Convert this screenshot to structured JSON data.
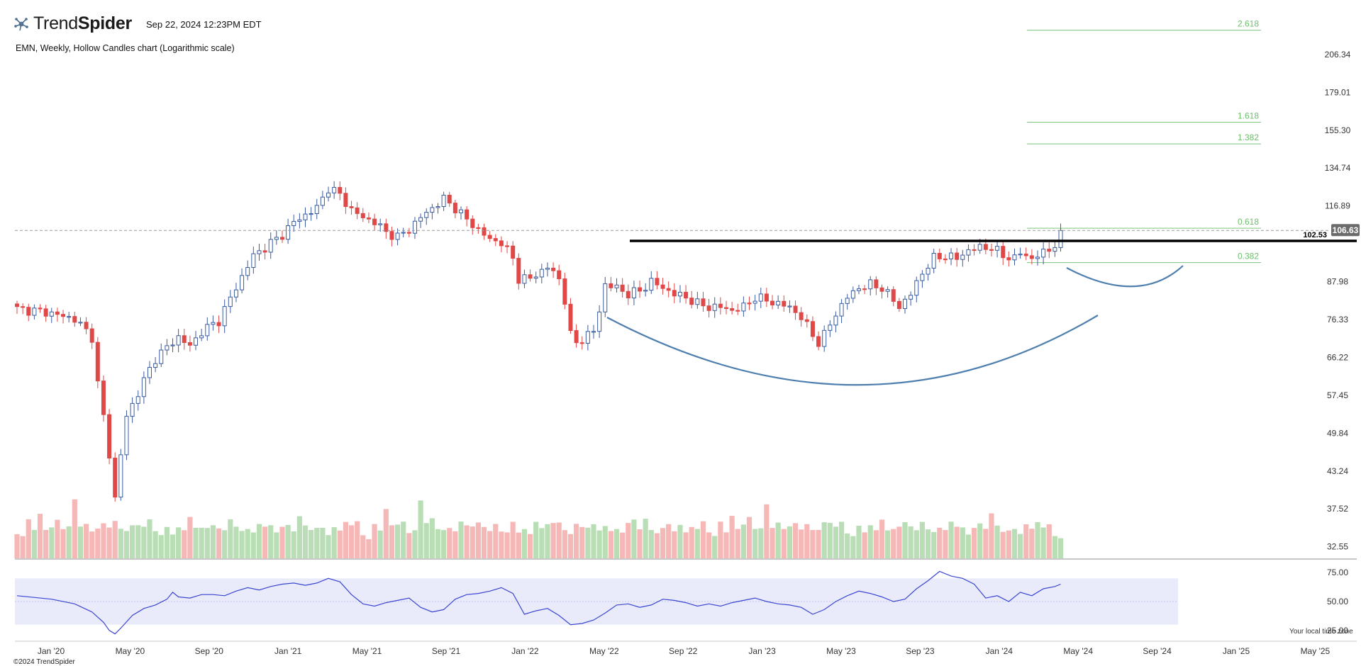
{
  "header": {
    "brand_light": "Trend",
    "brand_bold": "Spider",
    "timestamp": "Sep 22, 2024 12:23PM EDT",
    "chart_title": "EMN, Weekly, Hollow Candles chart (Logarithmic scale)",
    "copyright": "©2024 TrendSpider",
    "timezone_note": "Your local time zone"
  },
  "colors": {
    "up": "#3a5ba0",
    "down": "#e04848",
    "vol_up": "#b9deb6",
    "vol_down": "#f6b7b7",
    "fib": "#7cc57a",
    "arc": "#4f7fae",
    "rsi": "#3b46d0",
    "rsi_band": "#e9ebfb"
  },
  "chart_data": {
    "type": "candlestick",
    "ticker": "EMN",
    "interval": "Weekly",
    "scale": "log",
    "ylim": [
      31,
      240
    ],
    "y_ticks": [
      "206.34",
      "179.01",
      "155.30",
      "134.74",
      "116.89",
      "87.98",
      "76.33",
      "66.22",
      "57.45",
      "49.84",
      "43.24",
      "37.52",
      "32.55"
    ],
    "x_ticks": [
      "Jan '20",
      "May '20",
      "Sep '20",
      "Jan '21",
      "May '21",
      "Sep '21",
      "Jan '22",
      "May '22",
      "Sep '22",
      "Jan '23",
      "May '23",
      "Sep '23",
      "Jan '24",
      "May '24",
      "Sep '24",
      "Jan '25",
      "May '25"
    ],
    "price_path": [
      [
        0,
        79.5
      ],
      [
        5,
        78.5
      ],
      [
        10,
        76.5
      ],
      [
        13,
        71.5
      ],
      [
        14,
        60
      ],
      [
        16,
        46
      ],
      [
        17,
        39
      ],
      [
        18,
        46
      ],
      [
        19,
        53
      ],
      [
        21,
        58
      ],
      [
        24,
        66
      ],
      [
        28,
        71.5
      ],
      [
        30,
        69
      ],
      [
        32,
        73
      ],
      [
        35,
        76
      ],
      [
        38,
        86
      ],
      [
        41,
        97
      ],
      [
        43,
        100
      ],
      [
        46,
        105
      ],
      [
        48,
        110
      ],
      [
        50,
        113
      ],
      [
        52,
        116
      ],
      [
        54,
        125
      ],
      [
        56,
        122
      ],
      [
        58,
        115
      ],
      [
        60,
        112
      ],
      [
        62,
        110
      ],
      [
        64,
        106
      ],
      [
        66,
        104
      ],
      [
        68,
        107
      ],
      [
        70,
        112
      ],
      [
        72,
        116
      ],
      [
        74,
        120
      ],
      [
        76,
        116
      ],
      [
        78,
        111
      ],
      [
        80,
        107
      ],
      [
        82,
        103
      ],
      [
        84,
        102
      ],
      [
        86,
        96
      ],
      [
        87,
        89
      ],
      [
        88,
        89
      ],
      [
        89,
        89
      ],
      [
        92,
        93
      ],
      [
        94,
        89
      ],
      [
        95,
        82
      ],
      [
        96,
        72
      ],
      [
        97,
        70
      ],
      [
        98,
        71
      ],
      [
        100,
        73
      ],
      [
        101,
        79
      ],
      [
        102,
        87
      ],
      [
        104,
        86
      ],
      [
        106,
        84
      ],
      [
        108,
        85
      ],
      [
        110,
        88
      ],
      [
        112,
        86
      ],
      [
        114,
        84
      ],
      [
        116,
        83
      ],
      [
        118,
        81
      ],
      [
        120,
        80
      ],
      [
        122,
        80
      ],
      [
        124,
        79
      ],
      [
        126,
        80
      ],
      [
        128,
        83
      ],
      [
        130,
        82
      ],
      [
        132,
        81
      ],
      [
        134,
        80
      ],
      [
        136,
        77
      ],
      [
        138,
        72
      ],
      [
        139,
        70
      ],
      [
        140,
        72
      ],
      [
        142,
        78
      ],
      [
        144,
        83
      ],
      [
        146,
        86
      ],
      [
        148,
        87
      ],
      [
        150,
        86
      ],
      [
        152,
        82
      ],
      [
        153,
        80
      ],
      [
        155,
        84
      ],
      [
        157,
        91
      ],
      [
        159,
        96
      ],
      [
        161,
        97
      ],
      [
        163,
        96
      ],
      [
        165,
        99
      ],
      [
        167,
        100
      ],
      [
        169,
        100
      ],
      [
        171,
        97
      ],
      [
        173,
        96
      ],
      [
        174,
        98
      ],
      [
        176,
        96
      ],
      [
        178,
        98
      ],
      [
        180,
        101
      ],
      [
        181,
        106.63
      ]
    ],
    "last_close": 106.63,
    "last_close_label": "106.63",
    "resistance_level": 102.53,
    "resistance_label": "102.53",
    "fib_levels": [
      {
        "label": "2.618",
        "value": 226
      },
      {
        "label": "1.618",
        "value": 160
      },
      {
        "label": "1.382",
        "value": 147.5
      },
      {
        "label": "0.618",
        "value": 107.5
      },
      {
        "label": "0.382",
        "value": 94.5
      }
    ],
    "volume_pattern": [
      22,
      19,
      33,
      25,
      42,
      28,
      30,
      35,
      25,
      27,
      52,
      30,
      34,
      26,
      27,
      30,
      26,
      33,
      28,
      27,
      32,
      30,
      27,
      33,
      24,
      22,
      31,
      23,
      28,
      24,
      35,
      27,
      29,
      30,
      32,
      27,
      24,
      33,
      28,
      26,
      29,
      25,
      31,
      27,
      28,
      23,
      30,
      33,
      26,
      38,
      28,
      24,
      27,
      29,
      23,
      30,
      25,
      31,
      28,
      33
    ],
    "rsi": {
      "ylim": [
        20,
        80
      ],
      "ticks": [
        "75.00",
        "50.00",
        "25.00"
      ],
      "band": [
        30,
        70
      ],
      "path": [
        [
          0,
          55
        ],
        [
          6,
          52
        ],
        [
          10,
          48
        ],
        [
          13,
          41
        ],
        [
          15,
          32
        ],
        [
          16,
          25
        ],
        [
          17,
          22
        ],
        [
          18,
          27
        ],
        [
          20,
          38
        ],
        [
          22,
          44
        ],
        [
          24,
          47
        ],
        [
          26,
          52
        ],
        [
          27,
          58
        ],
        [
          28,
          54
        ],
        [
          30,
          53
        ],
        [
          32,
          56
        ],
        [
          34,
          56
        ],
        [
          36,
          55
        ],
        [
          38,
          59
        ],
        [
          40,
          62
        ],
        [
          42,
          60
        ],
        [
          44,
          63
        ],
        [
          46,
          65
        ],
        [
          48,
          66
        ],
        [
          50,
          64
        ],
        [
          52,
          66
        ],
        [
          54,
          70
        ],
        [
          56,
          67
        ],
        [
          58,
          56
        ],
        [
          60,
          48
        ],
        [
          62,
          46
        ],
        [
          64,
          49
        ],
        [
          66,
          51
        ],
        [
          68,
          53
        ],
        [
          70,
          45
        ],
        [
          72,
          41
        ],
        [
          74,
          43
        ],
        [
          76,
          52
        ],
        [
          78,
          56
        ],
        [
          80,
          57
        ],
        [
          82,
          59
        ],
        [
          84,
          62
        ],
        [
          86,
          57
        ],
        [
          88,
          39
        ],
        [
          90,
          42
        ],
        [
          92,
          44
        ],
        [
          94,
          38
        ],
        [
          96,
          30
        ],
        [
          98,
          31
        ],
        [
          100,
          34
        ],
        [
          102,
          40
        ],
        [
          104,
          47
        ],
        [
          106,
          48
        ],
        [
          108,
          45
        ],
        [
          110,
          47
        ],
        [
          112,
          52
        ],
        [
          114,
          51
        ],
        [
          116,
          49
        ],
        [
          118,
          46
        ],
        [
          120,
          48
        ],
        [
          122,
          46
        ],
        [
          124,
          49
        ],
        [
          126,
          51
        ],
        [
          128,
          53
        ],
        [
          130,
          50
        ],
        [
          132,
          48
        ],
        [
          134,
          47
        ],
        [
          136,
          45
        ],
        [
          138,
          39
        ],
        [
          140,
          43
        ],
        [
          142,
          50
        ],
        [
          144,
          55
        ],
        [
          146,
          59
        ],
        [
          148,
          57
        ],
        [
          150,
          54
        ],
        [
          152,
          50
        ],
        [
          154,
          52
        ],
        [
          156,
          61
        ],
        [
          158,
          68
        ],
        [
          160,
          76
        ],
        [
          162,
          72
        ],
        [
          164,
          70
        ],
        [
          166,
          65
        ],
        [
          168,
          53
        ],
        [
          170,
          55
        ],
        [
          172,
          50
        ],
        [
          174,
          58
        ],
        [
          176,
          55
        ],
        [
          178,
          61
        ],
        [
          180,
          63
        ],
        [
          181,
          65
        ]
      ]
    }
  }
}
